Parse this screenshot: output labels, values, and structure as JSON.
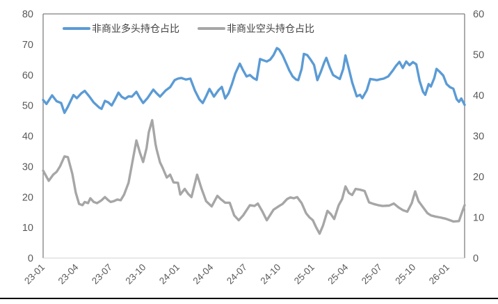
{
  "chart_data": {
    "type": "line",
    "title": "",
    "grid": false,
    "legend_position": "top-inside",
    "x_axis": {
      "domain_months": [
        0,
        37.5
      ],
      "tick_months": [
        0,
        3,
        6,
        9,
        12,
        15,
        18,
        21,
        24,
        27,
        30,
        33,
        36
      ],
      "tick_labels": [
        "23-01",
        "23-04",
        "23-07",
        "23-10",
        "24-01",
        "24-04",
        "24-07",
        "24-10",
        "25-01",
        "25-04",
        "25-07",
        "25-10",
        "26-01"
      ]
    },
    "y_axis_left": {
      "min": 0,
      "max": 80,
      "ticks": [
        0,
        10,
        20,
        30,
        40,
        50,
        60,
        70,
        80
      ]
    },
    "y_axis_right": {
      "min": 0,
      "max": 60,
      "ticks": [
        0,
        10,
        20,
        30,
        40,
        50,
        60
      ]
    },
    "series": [
      {
        "name": "非商业多头持仓占比",
        "color": "#5B9BD5",
        "axis": "left",
        "points": [
          [
            0,
            51.8
          ],
          [
            0.3,
            50.5
          ],
          [
            0.8,
            53.3
          ],
          [
            1.2,
            51.4
          ],
          [
            1.6,
            50.8
          ],
          [
            1.9,
            47.6
          ],
          [
            2.2,
            49.6
          ],
          [
            2.7,
            53.4
          ],
          [
            3.0,
            52.4
          ],
          [
            3.4,
            54.0
          ],
          [
            3.7,
            54.8
          ],
          [
            4.1,
            53.0
          ],
          [
            4.5,
            51.0
          ],
          [
            5.0,
            49.3
          ],
          [
            5.2,
            48.9
          ],
          [
            5.5,
            51.5
          ],
          [
            5.8,
            51.0
          ],
          [
            6.1,
            50.0
          ],
          [
            6.4,
            52.0
          ],
          [
            6.7,
            54.2
          ],
          [
            7.0,
            52.8
          ],
          [
            7.3,
            52.2
          ],
          [
            7.6,
            53.0
          ],
          [
            7.9,
            52.9
          ],
          [
            8.3,
            54.5
          ],
          [
            8.6,
            52.5
          ],
          [
            8.9,
            50.8
          ],
          [
            9.3,
            52.5
          ],
          [
            9.8,
            55.2
          ],
          [
            10.1,
            54.0
          ],
          [
            10.4,
            52.9
          ],
          [
            10.9,
            54.9
          ],
          [
            11.3,
            56.0
          ],
          [
            11.7,
            58.3
          ],
          [
            12.0,
            58.8
          ],
          [
            12.3,
            59.0
          ],
          [
            12.7,
            58.5
          ],
          [
            13.1,
            58.8
          ],
          [
            13.5,
            54.9
          ],
          [
            13.9,
            52.0
          ],
          [
            14.2,
            50.8
          ],
          [
            14.5,
            53.0
          ],
          [
            14.8,
            55.4
          ],
          [
            15.2,
            52.9
          ],
          [
            15.6,
            55.0
          ],
          [
            15.9,
            56.1
          ],
          [
            16.2,
            52.3
          ],
          [
            16.5,
            54.0
          ],
          [
            16.8,
            57.0
          ],
          [
            17.1,
            60.5
          ],
          [
            17.5,
            63.7
          ],
          [
            17.8,
            61.5
          ],
          [
            18.1,
            59.5
          ],
          [
            18.4,
            60.0
          ],
          [
            18.7,
            59.0
          ],
          [
            19.0,
            58.4
          ],
          [
            19.3,
            65.2
          ],
          [
            19.6,
            64.8
          ],
          [
            19.9,
            64.4
          ],
          [
            20.2,
            65.0
          ],
          [
            20.5,
            66.5
          ],
          [
            20.8,
            68.8
          ],
          [
            21.0,
            68.3
          ],
          [
            21.3,
            66.5
          ],
          [
            21.6,
            64.0
          ],
          [
            21.9,
            61.5
          ],
          [
            22.2,
            59.5
          ],
          [
            22.5,
            58.5
          ],
          [
            22.7,
            58.3
          ],
          [
            23.0,
            62.0
          ],
          [
            23.2,
            66.9
          ],
          [
            23.5,
            66.5
          ],
          [
            23.8,
            65.0
          ],
          [
            24.1,
            63.3
          ],
          [
            24.4,
            58.3
          ],
          [
            24.7,
            61.0
          ],
          [
            25.0,
            64.0
          ],
          [
            25.2,
            65.6
          ],
          [
            25.5,
            62.5
          ],
          [
            25.8,
            60.0
          ],
          [
            26.1,
            59.3
          ],
          [
            26.4,
            58.7
          ],
          [
            26.7,
            62.0
          ],
          [
            26.9,
            66.4
          ],
          [
            27.2,
            62.0
          ],
          [
            27.5,
            57.5
          ],
          [
            27.9,
            53.0
          ],
          [
            28.2,
            53.5
          ],
          [
            28.4,
            52.4
          ],
          [
            28.8,
            55.0
          ],
          [
            29.1,
            58.7
          ],
          [
            29.4,
            58.5
          ],
          [
            29.7,
            58.3
          ],
          [
            30.0,
            58.6
          ],
          [
            30.3,
            58.8
          ],
          [
            30.7,
            59.5
          ],
          [
            31.1,
            61.4
          ],
          [
            31.4,
            63.0
          ],
          [
            31.7,
            64.3
          ],
          [
            32.0,
            62.3
          ],
          [
            32.3,
            64.4
          ],
          [
            32.6,
            63.2
          ],
          [
            32.9,
            64.2
          ],
          [
            33.2,
            63.5
          ],
          [
            33.5,
            58.0
          ],
          [
            33.8,
            54.5
          ],
          [
            34.0,
            53.5
          ],
          [
            34.3,
            57.0
          ],
          [
            34.5,
            56.2
          ],
          [
            34.8,
            59.0
          ],
          [
            35.0,
            62.0
          ],
          [
            35.3,
            61.0
          ],
          [
            35.6,
            59.8
          ],
          [
            35.9,
            57.0
          ],
          [
            36.2,
            56.0
          ],
          [
            36.5,
            55.5
          ],
          [
            36.8,
            52.0
          ],
          [
            37.0,
            51.2
          ],
          [
            37.2,
            52.3
          ],
          [
            37.5,
            50.2
          ]
        ]
      },
      {
        "name": "非商业空头持仓占比",
        "color": "#A6A6A6",
        "axis": "right",
        "points": [
          [
            0,
            21.5
          ],
          [
            0.3,
            20.0
          ],
          [
            0.5,
            19.0
          ],
          [
            0.9,
            20.5
          ],
          [
            1.2,
            21.2
          ],
          [
            1.5,
            22.5
          ],
          [
            1.9,
            25.0
          ],
          [
            2.2,
            24.8
          ],
          [
            2.6,
            20.7
          ],
          [
            2.9,
            16.1
          ],
          [
            3.2,
            13.3
          ],
          [
            3.5,
            13.0
          ],
          [
            3.7,
            13.8
          ],
          [
            4.0,
            13.5
          ],
          [
            4.2,
            14.7
          ],
          [
            4.5,
            13.8
          ],
          [
            4.8,
            13.5
          ],
          [
            5.2,
            14.2
          ],
          [
            5.5,
            15.0
          ],
          [
            5.8,
            14.2
          ],
          [
            6.0,
            13.8
          ],
          [
            6.3,
            14.0
          ],
          [
            6.6,
            14.4
          ],
          [
            6.9,
            14.2
          ],
          [
            7.2,
            15.6
          ],
          [
            7.6,
            18.5
          ],
          [
            7.9,
            23.0
          ],
          [
            8.3,
            28.9
          ],
          [
            8.6,
            26.0
          ],
          [
            8.9,
            23.6
          ],
          [
            9.2,
            27.0
          ],
          [
            9.4,
            30.9
          ],
          [
            9.7,
            33.9
          ],
          [
            10.0,
            28.0
          ],
          [
            10.1,
            26.7
          ],
          [
            10.4,
            23.5
          ],
          [
            10.6,
            22.4
          ],
          [
            11.0,
            19.8
          ],
          [
            11.3,
            20.5
          ],
          [
            11.6,
            18.6
          ],
          [
            12.0,
            18.5
          ],
          [
            12.2,
            15.6
          ],
          [
            12.6,
            17.0
          ],
          [
            12.9,
            15.8
          ],
          [
            13.2,
            15.0
          ],
          [
            13.7,
            20.5
          ],
          [
            14.1,
            17.0
          ],
          [
            14.5,
            14.0
          ],
          [
            15.0,
            12.7
          ],
          [
            15.5,
            15.3
          ],
          [
            15.8,
            14.5
          ],
          [
            16.2,
            13.6
          ],
          [
            16.6,
            13.6
          ],
          [
            17.0,
            10.5
          ],
          [
            17.4,
            9.3
          ],
          [
            17.8,
            10.5
          ],
          [
            18.4,
            13.0
          ],
          [
            18.8,
            12.8
          ],
          [
            19.1,
            13.4
          ],
          [
            19.5,
            11.5
          ],
          [
            19.9,
            9.3
          ],
          [
            20.3,
            11.0
          ],
          [
            20.5,
            11.9
          ],
          [
            21.0,
            12.8
          ],
          [
            21.3,
            13.3
          ],
          [
            21.7,
            14.5
          ],
          [
            22.0,
            14.9
          ],
          [
            22.3,
            14.7
          ],
          [
            22.6,
            15.0
          ],
          [
            23.0,
            13.5
          ],
          [
            23.4,
            11.0
          ],
          [
            23.7,
            10.0
          ],
          [
            24.0,
            9.3
          ],
          [
            24.3,
            7.5
          ],
          [
            24.6,
            6.0
          ],
          [
            24.9,
            8.0
          ],
          [
            25.3,
            11.6
          ],
          [
            25.6,
            10.8
          ],
          [
            25.9,
            9.6
          ],
          [
            26.3,
            13.0
          ],
          [
            26.6,
            14.5
          ],
          [
            26.9,
            17.6
          ],
          [
            27.2,
            16.0
          ],
          [
            27.5,
            15.5
          ],
          [
            27.8,
            17.0
          ],
          [
            28.2,
            16.8
          ],
          [
            28.6,
            16.5
          ],
          [
            29.0,
            13.7
          ],
          [
            29.4,
            13.3
          ],
          [
            29.8,
            13.0
          ],
          [
            30.2,
            12.8
          ],
          [
            30.8,
            12.9
          ],
          [
            31.2,
            13.4
          ],
          [
            31.6,
            12.5
          ],
          [
            32.0,
            11.8
          ],
          [
            32.4,
            11.4
          ],
          [
            32.8,
            13.5
          ],
          [
            33.1,
            16.4
          ],
          [
            33.4,
            14.0
          ],
          [
            33.8,
            12.5
          ],
          [
            34.2,
            11.0
          ],
          [
            34.5,
            10.5
          ],
          [
            34.9,
            10.2
          ],
          [
            35.3,
            10.0
          ],
          [
            35.8,
            9.7
          ],
          [
            36.2,
            9.3
          ],
          [
            36.5,
            9.0
          ],
          [
            37.0,
            9.1
          ],
          [
            37.3,
            11.5
          ],
          [
            37.5,
            13.0
          ]
        ]
      }
    ]
  },
  "legend": {
    "long_label": "非商业多头持仓占比",
    "short_label": "非商业空头持仓占比"
  },
  "colors": {
    "long_line": "#5B9BD5",
    "short_line": "#A6A6A6",
    "axis_box": "#7F7F7F",
    "axis_bottom": "#D9D9D9",
    "tick_text": "#595959",
    "bottom_rule": "#000000",
    "background": "#FFFFFF"
  }
}
